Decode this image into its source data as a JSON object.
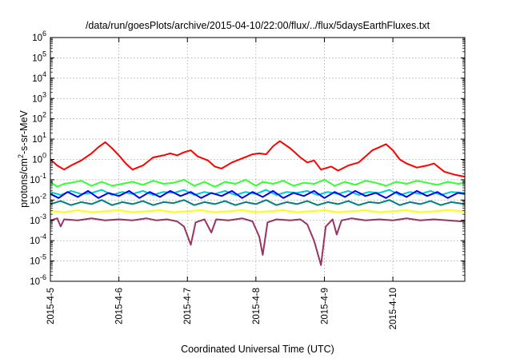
{
  "chart_data": {
    "type": "line",
    "title": "/data/run/goesPlots/archive/2015-04-10/22:00/flux/../flux/5daysEarthFluxes.txt",
    "xlabel": "Coordinated Universal Time (UTC)",
    "ylabel": {
      "base": "protons/cm",
      "sup": "2",
      "rest": "-s-sr-MeV"
    },
    "y_scale": "log",
    "ylim": [
      1e-06,
      1000000.0
    ],
    "x_range_days": [
      0,
      6.05
    ],
    "grid": true,
    "legend": "none",
    "x_ticks": [
      {
        "label": "2015-4-5",
        "day": 0
      },
      {
        "label": "2015-4-6",
        "day": 1
      },
      {
        "label": "2015-4-7",
        "day": 2
      },
      {
        "label": "2015-4-8",
        "day": 3
      },
      {
        "label": "2015-4-9",
        "day": 4
      },
      {
        "label": "2015-4-10",
        "day": 5
      }
    ],
    "y_ticks": [
      -6,
      -5,
      -4,
      -3,
      -2,
      -1,
      0,
      1,
      2,
      3,
      4,
      5,
      6
    ],
    "y_tick_base": "10",
    "series": [
      {
        "color": "#ff0000",
        "values": [
          [
            0.0,
            0.0
          ],
          [
            0.1,
            -0.3
          ],
          [
            0.2,
            -0.5
          ],
          [
            0.3,
            -0.3
          ],
          [
            0.45,
            -0.05
          ],
          [
            0.6,
            0.3
          ],
          [
            0.7,
            0.6
          ],
          [
            0.8,
            0.85
          ],
          [
            0.9,
            0.55
          ],
          [
            1.0,
            0.2
          ],
          [
            1.1,
            -0.2
          ],
          [
            1.2,
            -0.5
          ],
          [
            1.35,
            -0.3
          ],
          [
            1.5,
            0.1
          ],
          [
            1.65,
            0.2
          ],
          [
            1.75,
            0.3
          ],
          [
            1.85,
            0.2
          ],
          [
            1.95,
            0.35
          ],
          [
            2.05,
            0.45
          ],
          [
            2.15,
            0.15
          ],
          [
            2.3,
            -0.05
          ],
          [
            2.4,
            -0.35
          ],
          [
            2.5,
            -0.45
          ],
          [
            2.65,
            -0.15
          ],
          [
            2.8,
            0.05
          ],
          [
            2.95,
            0.25
          ],
          [
            3.05,
            0.3
          ],
          [
            3.15,
            0.25
          ],
          [
            3.25,
            0.65
          ],
          [
            3.35,
            0.9
          ],
          [
            3.5,
            0.55
          ],
          [
            3.65,
            0.1
          ],
          [
            3.75,
            -0.15
          ],
          [
            3.85,
            -0.05
          ],
          [
            3.95,
            -0.5
          ],
          [
            4.1,
            -0.35
          ],
          [
            4.2,
            -0.55
          ],
          [
            4.35,
            -0.3
          ],
          [
            4.5,
            -0.15
          ],
          [
            4.6,
            0.15
          ],
          [
            4.7,
            0.45
          ],
          [
            4.8,
            0.6
          ],
          [
            4.9,
            0.75
          ],
          [
            5.0,
            0.45
          ],
          [
            5.1,
            0.0
          ],
          [
            5.2,
            -0.2
          ],
          [
            5.35,
            -0.4
          ],
          [
            5.5,
            -0.3
          ],
          [
            5.6,
            -0.2
          ],
          [
            5.75,
            -0.6
          ],
          [
            5.9,
            -0.75
          ],
          [
            6.05,
            -0.85
          ]
        ]
      },
      {
        "color": "#33ff33",
        "values": [
          [
            0.0,
            -1.1
          ],
          [
            0.1,
            -1.35
          ],
          [
            0.2,
            -1.2
          ],
          [
            0.3,
            -1.15
          ],
          [
            0.45,
            -1.05
          ],
          [
            0.6,
            -1.3
          ],
          [
            0.75,
            -1.1
          ],
          [
            0.9,
            -1.3
          ],
          [
            1.05,
            -1.2
          ],
          [
            1.2,
            -1.1
          ],
          [
            1.35,
            -1.25
          ],
          [
            1.5,
            -1.05
          ],
          [
            1.65,
            -1.2
          ],
          [
            1.8,
            -1.15
          ],
          [
            1.95,
            -1.0
          ],
          [
            2.1,
            -1.3
          ],
          [
            2.25,
            -1.1
          ],
          [
            2.4,
            -1.35
          ],
          [
            2.55,
            -1.1
          ],
          [
            2.7,
            -1.2
          ],
          [
            2.85,
            -1.0
          ],
          [
            3.0,
            -1.3
          ],
          [
            3.1,
            -1.1
          ],
          [
            3.25,
            -1.2
          ],
          [
            3.4,
            -1.05
          ],
          [
            3.55,
            -1.3
          ],
          [
            3.7,
            -1.15
          ],
          [
            3.85,
            -1.2
          ],
          [
            4.0,
            -1.0
          ],
          [
            4.15,
            -1.3
          ],
          [
            4.3,
            -1.1
          ],
          [
            4.45,
            -1.25
          ],
          [
            4.6,
            -1.05
          ],
          [
            4.75,
            -1.15
          ],
          [
            4.9,
            -1.3
          ],
          [
            5.05,
            -1.1
          ],
          [
            5.2,
            -1.2
          ],
          [
            5.35,
            -1.05
          ],
          [
            5.5,
            -1.15
          ],
          [
            5.65,
            -1.25
          ],
          [
            5.8,
            -1.1
          ],
          [
            5.95,
            -1.2
          ],
          [
            6.05,
            -1.15
          ]
        ]
      },
      {
        "color": "#00cccc",
        "values": [
          [
            0.0,
            -1.6
          ],
          [
            0.15,
            -1.75
          ],
          [
            0.3,
            -1.55
          ],
          [
            0.45,
            -1.7
          ],
          [
            0.6,
            -1.65
          ],
          [
            0.75,
            -1.5
          ],
          [
            0.9,
            -1.75
          ],
          [
            1.05,
            -1.6
          ],
          [
            1.2,
            -1.7
          ],
          [
            1.35,
            -1.55
          ],
          [
            1.5,
            -1.75
          ],
          [
            1.65,
            -1.6
          ],
          [
            1.8,
            -1.65
          ],
          [
            1.95,
            -1.5
          ],
          [
            2.1,
            -1.75
          ],
          [
            2.25,
            -1.6
          ],
          [
            2.4,
            -1.7
          ],
          [
            2.55,
            -1.55
          ],
          [
            2.7,
            -1.75
          ],
          [
            2.85,
            -1.6
          ],
          [
            3.0,
            -1.7
          ],
          [
            3.15,
            -1.5
          ],
          [
            3.3,
            -1.75
          ],
          [
            3.45,
            -1.6
          ],
          [
            3.6,
            -1.65
          ],
          [
            3.75,
            -1.55
          ],
          [
            3.9,
            -1.75
          ],
          [
            4.05,
            -1.6
          ],
          [
            4.2,
            -1.7
          ],
          [
            4.35,
            -1.55
          ],
          [
            4.5,
            -1.75
          ],
          [
            4.65,
            -1.6
          ],
          [
            4.8,
            -1.65
          ],
          [
            4.95,
            -1.5
          ],
          [
            5.1,
            -1.75
          ],
          [
            5.25,
            -1.6
          ],
          [
            5.4,
            -1.7
          ],
          [
            5.55,
            -1.55
          ],
          [
            5.7,
            -1.75
          ],
          [
            5.85,
            -1.6
          ],
          [
            6.05,
            -1.65
          ]
        ]
      },
      {
        "color": "#0000ff",
        "values": [
          [
            0.0,
            -1.7
          ],
          [
            0.12,
            -1.9
          ],
          [
            0.25,
            -1.6
          ],
          [
            0.4,
            -1.85
          ],
          [
            0.55,
            -1.55
          ],
          [
            0.7,
            -1.9
          ],
          [
            0.85,
            -1.65
          ],
          [
            1.0,
            -1.8
          ],
          [
            1.15,
            -1.55
          ],
          [
            1.3,
            -1.9
          ],
          [
            1.45,
            -1.6
          ],
          [
            1.6,
            -1.85
          ],
          [
            1.75,
            -1.55
          ],
          [
            1.9,
            -1.8
          ],
          [
            2.05,
            -1.6
          ],
          [
            2.2,
            -1.9
          ],
          [
            2.35,
            -1.65
          ],
          [
            2.5,
            -1.8
          ],
          [
            2.65,
            -1.55
          ],
          [
            2.8,
            -1.9
          ],
          [
            2.95,
            -1.6
          ],
          [
            3.1,
            -1.85
          ],
          [
            3.25,
            -1.55
          ],
          [
            3.4,
            -1.9
          ],
          [
            3.55,
            -1.65
          ],
          [
            3.7,
            -1.8
          ],
          [
            3.85,
            -1.55
          ],
          [
            4.0,
            -1.9
          ],
          [
            4.15,
            -1.6
          ],
          [
            4.3,
            -1.85
          ],
          [
            4.45,
            -1.55
          ],
          [
            4.6,
            -1.8
          ],
          [
            4.75,
            -1.65
          ],
          [
            4.9,
            -1.9
          ],
          [
            5.05,
            -1.6
          ],
          [
            5.2,
            -1.85
          ],
          [
            5.35,
            -1.55
          ],
          [
            5.5,
            -1.8
          ],
          [
            5.65,
            -1.6
          ],
          [
            5.8,
            -1.9
          ],
          [
            5.95,
            -1.65
          ],
          [
            6.05,
            -1.7
          ]
        ]
      },
      {
        "color": "#008080",
        "values": [
          [
            0.0,
            -2.2
          ],
          [
            0.15,
            -2.05
          ],
          [
            0.3,
            -2.25
          ],
          [
            0.45,
            -2.1
          ],
          [
            0.6,
            -2.2
          ],
          [
            0.75,
            -2.0
          ],
          [
            0.9,
            -2.25
          ],
          [
            1.05,
            -2.1
          ],
          [
            1.2,
            -2.2
          ],
          [
            1.35,
            -2.05
          ],
          [
            1.5,
            -2.25
          ],
          [
            1.65,
            -2.1
          ],
          [
            1.8,
            -2.15
          ],
          [
            1.95,
            -2.0
          ],
          [
            2.1,
            -2.25
          ],
          [
            2.25,
            -2.1
          ],
          [
            2.4,
            -2.2
          ],
          [
            2.55,
            -2.05
          ],
          [
            2.7,
            -2.25
          ],
          [
            2.85,
            -2.1
          ],
          [
            3.0,
            -2.2
          ],
          [
            3.15,
            -2.0
          ],
          [
            3.3,
            -2.25
          ],
          [
            3.45,
            -2.1
          ],
          [
            3.6,
            -2.2
          ],
          [
            3.75,
            -2.05
          ],
          [
            3.9,
            -2.25
          ],
          [
            4.05,
            -2.1
          ],
          [
            4.2,
            -2.2
          ],
          [
            4.35,
            -2.05
          ],
          [
            4.5,
            -2.25
          ],
          [
            4.65,
            -2.1
          ],
          [
            4.8,
            -2.15
          ],
          [
            4.95,
            -2.0
          ],
          [
            5.1,
            -2.25
          ],
          [
            5.25,
            -2.1
          ],
          [
            5.4,
            -2.2
          ],
          [
            5.55,
            -2.05
          ],
          [
            5.7,
            -2.25
          ],
          [
            5.85,
            -2.1
          ],
          [
            6.05,
            -2.2
          ]
        ]
      },
      {
        "color": "#ffff00",
        "values": [
          [
            0.0,
            -2.55
          ],
          [
            0.2,
            -2.6
          ],
          [
            0.4,
            -2.5
          ],
          [
            0.6,
            -2.6
          ],
          [
            0.8,
            -2.55
          ],
          [
            1.0,
            -2.5
          ],
          [
            1.2,
            -2.6
          ],
          [
            1.4,
            -2.55
          ],
          [
            1.6,
            -2.5
          ],
          [
            1.8,
            -2.6
          ],
          [
            2.0,
            -2.55
          ],
          [
            2.2,
            -2.5
          ],
          [
            2.4,
            -2.6
          ],
          [
            2.6,
            -2.55
          ],
          [
            2.8,
            -2.5
          ],
          [
            3.0,
            -2.6
          ],
          [
            3.2,
            -2.55
          ],
          [
            3.4,
            -2.5
          ],
          [
            3.6,
            -2.6
          ],
          [
            3.8,
            -2.55
          ],
          [
            4.0,
            -2.5
          ],
          [
            4.2,
            -2.6
          ],
          [
            4.4,
            -2.55
          ],
          [
            4.6,
            -2.5
          ],
          [
            4.8,
            -2.6
          ],
          [
            5.0,
            -2.55
          ],
          [
            5.2,
            -2.5
          ],
          [
            5.4,
            -2.6
          ],
          [
            5.6,
            -2.55
          ],
          [
            5.8,
            -2.5
          ],
          [
            6.05,
            -2.55
          ]
        ]
      },
      {
        "color": "#993366",
        "values": [
          [
            0.0,
            -3.0
          ],
          [
            0.1,
            -2.9
          ],
          [
            0.15,
            -3.3
          ],
          [
            0.2,
            -2.95
          ],
          [
            0.4,
            -3.0
          ],
          [
            0.6,
            -2.9
          ],
          [
            0.8,
            -3.0
          ],
          [
            1.0,
            -2.95
          ],
          [
            1.2,
            -3.0
          ],
          [
            1.4,
            -2.9
          ],
          [
            1.55,
            -3.0
          ],
          [
            1.7,
            -2.95
          ],
          [
            1.85,
            -3.05
          ],
          [
            1.95,
            -3.3
          ],
          [
            2.05,
            -4.2
          ],
          [
            2.12,
            -3.1
          ],
          [
            2.25,
            -2.95
          ],
          [
            2.35,
            -3.6
          ],
          [
            2.42,
            -2.95
          ],
          [
            2.6,
            -3.0
          ],
          [
            2.8,
            -2.9
          ],
          [
            2.95,
            -3.05
          ],
          [
            3.05,
            -3.8
          ],
          [
            3.1,
            -4.7
          ],
          [
            3.17,
            -3.1
          ],
          [
            3.3,
            -2.95
          ],
          [
            3.5,
            -3.0
          ],
          [
            3.65,
            -2.95
          ],
          [
            3.75,
            -3.2
          ],
          [
            3.85,
            -4.0
          ],
          [
            3.95,
            -5.2
          ],
          [
            4.02,
            -3.3
          ],
          [
            4.12,
            -2.95
          ],
          [
            4.18,
            -3.7
          ],
          [
            4.25,
            -3.0
          ],
          [
            4.4,
            -2.9
          ],
          [
            4.6,
            -3.0
          ],
          [
            4.8,
            -2.95
          ],
          [
            5.0,
            -3.0
          ],
          [
            5.2,
            -2.9
          ],
          [
            5.4,
            -3.0
          ],
          [
            5.6,
            -2.95
          ],
          [
            5.8,
            -3.0
          ],
          [
            6.0,
            -3.05
          ],
          [
            6.05,
            -3.0
          ]
        ]
      }
    ]
  }
}
